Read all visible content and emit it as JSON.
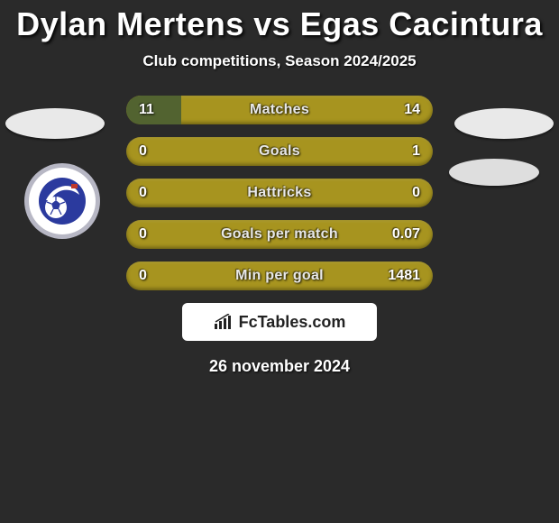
{
  "header": {
    "title": "Dylan Mertens vs Egas Cacintura",
    "subtitle": "Club competitions, Season 2024/2025"
  },
  "colors": {
    "page_bg": "#2a2a2a",
    "bar_bg": "#a7941f",
    "bar_fill": "#526330",
    "text": "#ffffff",
    "brand_bg": "#ffffff",
    "brand_text": "#222222"
  },
  "stats": [
    {
      "label": "Matches",
      "left_value": "11",
      "right_value": "14",
      "left_fill_pct": 18,
      "right_fill_pct": 0
    },
    {
      "label": "Goals",
      "left_value": "0",
      "right_value": "1",
      "left_fill_pct": 0,
      "right_fill_pct": 0
    },
    {
      "label": "Hattricks",
      "left_value": "0",
      "right_value": "0",
      "left_fill_pct": 0,
      "right_fill_pct": 0
    },
    {
      "label": "Goals per match",
      "left_value": "0",
      "right_value": "0.07",
      "left_fill_pct": 0,
      "right_fill_pct": 0
    },
    {
      "label": "Min per goal",
      "left_value": "0",
      "right_value": "1481",
      "left_fill_pct": 0,
      "right_fill_pct": 0
    }
  ],
  "footer": {
    "brand": "FcTables.com",
    "date": "26 november 2024"
  },
  "club_logo": {
    "ring_outer": "#b7b7c4",
    "ring_inner": "#ffffff",
    "center": "#2b3a9e",
    "text_ring": "#2b3a9e"
  }
}
